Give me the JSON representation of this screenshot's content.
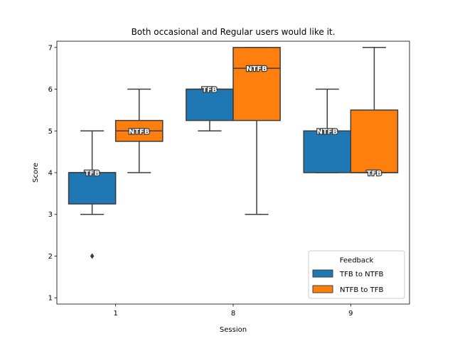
{
  "chart_data": {
    "type": "box",
    "title": "Both occasional and Regular users would like it.",
    "xlabel": "Session",
    "ylabel": "Score",
    "categories": [
      "1",
      "8",
      "9"
    ],
    "ylim": [
      0.85,
      7.15
    ],
    "yticks": [
      1,
      2,
      3,
      4,
      5,
      6,
      7
    ],
    "grid": false,
    "legend": {
      "title": "Feedback",
      "placement": "lower-right"
    },
    "series": [
      {
        "name": "TFB to NTFB",
        "color": "#1f77b4",
        "boxes": [
          {
            "category": "1",
            "whisker_low": 3,
            "q1": 3.25,
            "median": 4,
            "q3": 4,
            "whisker_high": 5,
            "outliers": [
              2
            ],
            "label": "TFB"
          },
          {
            "category": "8",
            "whisker_low": 5,
            "q1": 5.25,
            "median": 6,
            "q3": 6,
            "whisker_high": 6,
            "outliers": [],
            "label": "TFB"
          },
          {
            "category": "9",
            "whisker_low": 4,
            "q1": 4,
            "median": 5,
            "q3": 5,
            "whisker_high": 6,
            "outliers": [],
            "label": "NTFB"
          }
        ]
      },
      {
        "name": "NTFB to TFB",
        "color": "#ff7f0e",
        "boxes": [
          {
            "category": "1",
            "whisker_low": 4,
            "q1": 4.75,
            "median": 5,
            "q3": 5.25,
            "whisker_high": 6,
            "outliers": [],
            "label": "NTFB"
          },
          {
            "category": "8",
            "whisker_low": 3,
            "q1": 5.25,
            "median": 6.5,
            "q3": 7,
            "whisker_high": 7,
            "outliers": [],
            "label": "NTFB"
          },
          {
            "category": "9",
            "whisker_low": 4,
            "q1": 4,
            "median": 4,
            "q3": 5.5,
            "whisker_high": 7,
            "outliers": [],
            "label": "TFB"
          }
        ]
      }
    ]
  }
}
